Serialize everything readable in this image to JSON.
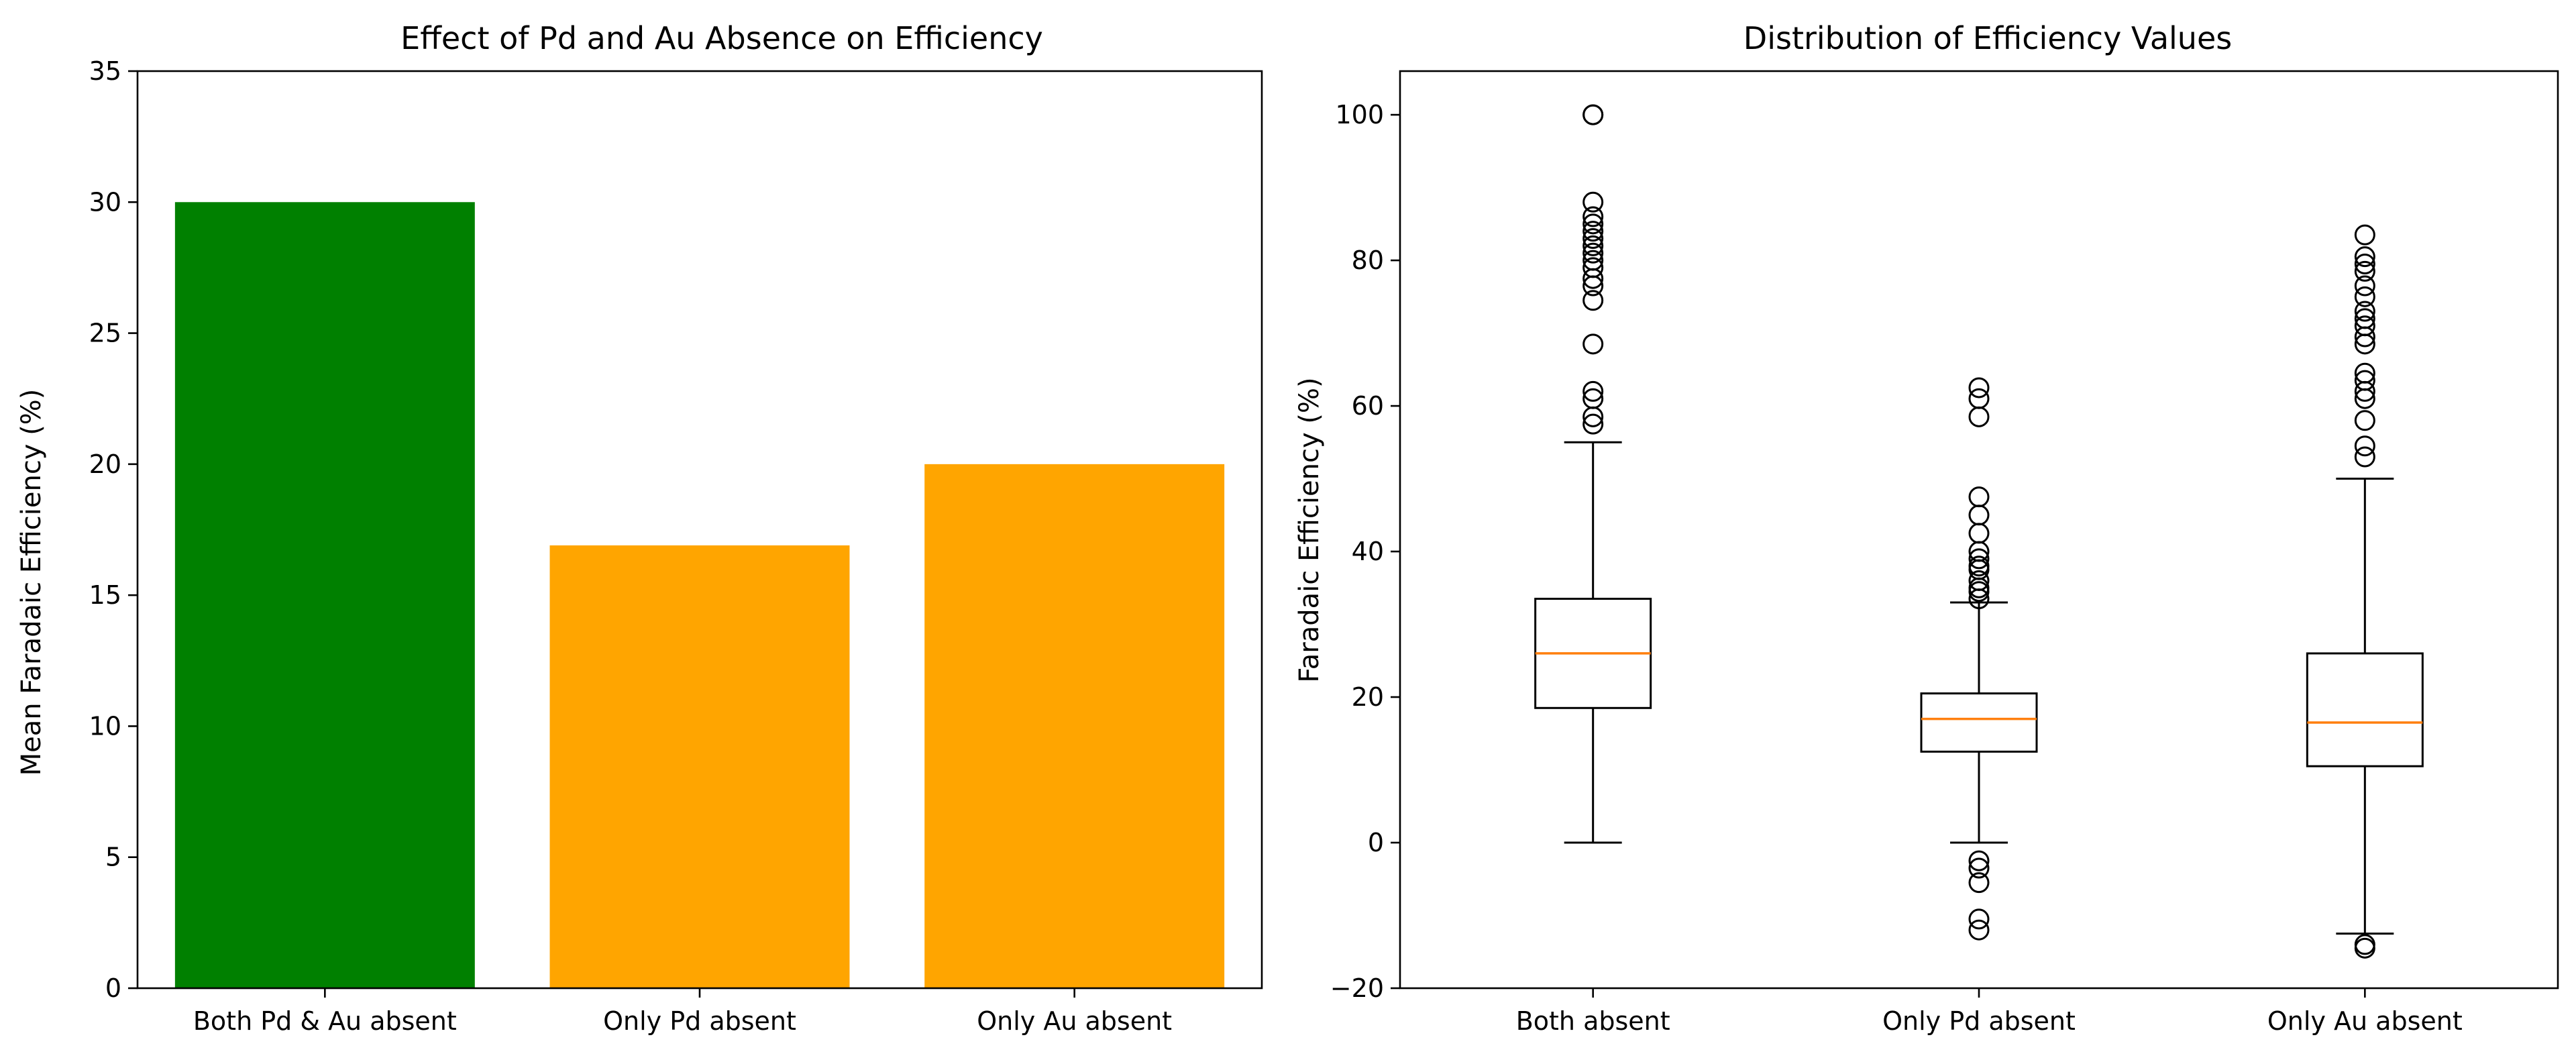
{
  "chart_data": [
    {
      "type": "bar",
      "title": "Effect of Pd and Au Absence on Efficiency",
      "xlabel": "",
      "ylabel": "Mean Faradaic Efficiency (%)",
      "categories": [
        "Both Pd & Au absent",
        "Only Pd absent",
        "Only Au absent"
      ],
      "values": [
        30.0,
        16.9,
        20.0
      ],
      "colors": [
        "#008000",
        "#FFA500",
        "#FFA500"
      ],
      "ylim": [
        0,
        35
      ],
      "yticks": [
        0,
        5,
        10,
        15,
        20,
        25,
        30,
        35
      ],
      "grid": false
    },
    {
      "type": "box",
      "title": "Distribution of Efficiency Values",
      "xlabel": "",
      "ylabel": "Faradaic Efficiency (%)",
      "categories": [
        "Both absent",
        "Only Pd absent",
        "Only Au absent"
      ],
      "ylim": [
        -20,
        106
      ],
      "yticks": [
        -20,
        0,
        20,
        40,
        60,
        80,
        100
      ],
      "median_color": "#FF7F0E",
      "grid": false,
      "boxes": [
        {
          "whisker_low": 0,
          "q1": 18.5,
          "median": 26,
          "q3": 33.5,
          "whisker_high": 55,
          "fliers": [
            57.5,
            58.5,
            61,
            62,
            68.5,
            74.5,
            76.5,
            77.5,
            79,
            80,
            81,
            82,
            83,
            84,
            85,
            86,
            88,
            100,
            100
          ]
        },
        {
          "whisker_low": 0,
          "q1": 12.5,
          "median": 17,
          "q3": 20.5,
          "whisker_high": 33,
          "fliers": [
            -12,
            -10.5,
            -5.5,
            -3.5,
            -2.5,
            33.5,
            34.5,
            35,
            36,
            37.5,
            38,
            39,
            40,
            42.5,
            45,
            47.5,
            58.5,
            61,
            62.5
          ]
        },
        {
          "whisker_low": -12.5,
          "q1": 10.5,
          "median": 16.5,
          "q3": 26,
          "whisker_high": 50,
          "fliers": [
            -14.5,
            -14,
            53,
            54.5,
            58,
            61,
            62,
            63.5,
            64.5,
            68.5,
            69.5,
            71,
            72,
            73,
            75,
            76.5,
            78.5,
            79.5,
            80.5,
            83.5
          ]
        }
      ]
    }
  ]
}
